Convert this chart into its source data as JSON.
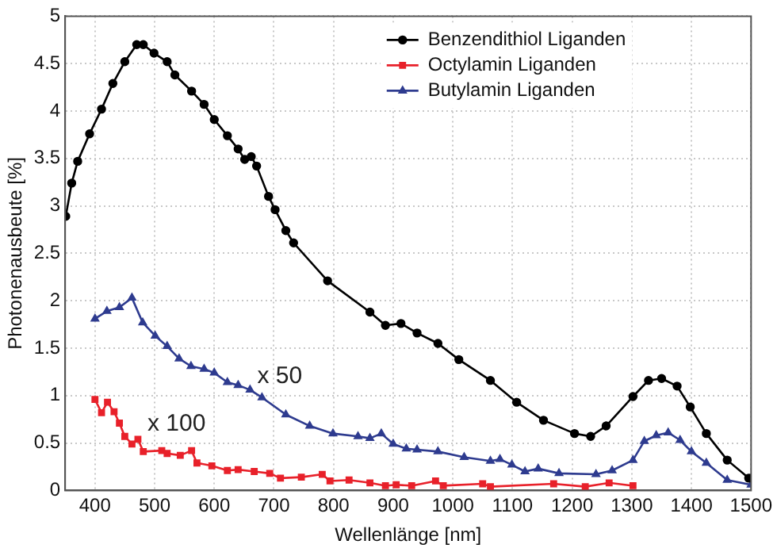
{
  "chart_data": {
    "type": "line",
    "xlabel": "Wellenlänge [nm]",
    "ylabel": "Photonenausbeute [%]",
    "xlim": [
      350,
      1500
    ],
    "xticks": [
      400,
      500,
      600,
      700,
      800,
      900,
      1000,
      1100,
      1200,
      1300,
      1400,
      1500
    ],
    "ylim": [
      0,
      5
    ],
    "yticks": [
      0,
      0.5,
      1,
      1.5,
      2,
      2.5,
      3,
      3.5,
      4,
      4.5,
      5
    ],
    "grid": true,
    "legend": "top right",
    "line_style": "solid",
    "annotations": [
      "x 50",
      "x 100"
    ],
    "series": [
      {
        "name": "Benzendithiol Liganden",
        "color": "#000000",
        "marker": "circle",
        "x": [
          351,
          361,
          371,
          391,
          411,
          430,
          450,
          470,
          481,
          499,
          521,
          534,
          562,
          583,
          600,
          622,
          640,
          651,
          662,
          671,
          691,
          702,
          720,
          733,
          790,
          861,
          887,
          913,
          940,
          975,
          1010,
          1063,
          1107,
          1152,
          1204,
          1231,
          1257,
          1302,
          1328,
          1350,
          1376,
          1398,
          1425,
          1460,
          1496
        ],
        "values": [
          2.89,
          3.24,
          3.47,
          3.76,
          4.02,
          4.29,
          4.52,
          4.7,
          4.7,
          4.61,
          4.52,
          4.38,
          4.21,
          4.07,
          3.91,
          3.74,
          3.6,
          3.49,
          3.52,
          3.42,
          3.1,
          2.96,
          2.74,
          2.61,
          2.21,
          1.88,
          1.74,
          1.76,
          1.66,
          1.55,
          1.38,
          1.16,
          0.93,
          0.74,
          0.6,
          0.57,
          0.68,
          0.99,
          1.16,
          1.18,
          1.1,
          0.88,
          0.6,
          0.32,
          0.13
        ]
      },
      {
        "name": "Octylamin Liganden",
        "color": "#e8212a",
        "marker": "square",
        "x": [
          400,
          411,
          421,
          432,
          441,
          450,
          462,
          472,
          481,
          512,
          521,
          543,
          562,
          571,
          596,
          622,
          640,
          667,
          693,
          711,
          746,
          781,
          794,
          826,
          861,
          887,
          905,
          931,
          971,
          984,
          1050,
          1063,
          1169,
          1222,
          1262,
          1302
        ],
        "values": [
          0.96,
          0.82,
          0.93,
          0.83,
          0.71,
          0.57,
          0.49,
          0.54,
          0.41,
          0.42,
          0.39,
          0.37,
          0.42,
          0.29,
          0.26,
          0.21,
          0.22,
          0.2,
          0.18,
          0.13,
          0.14,
          0.17,
          0.1,
          0.11,
          0.08,
          0.05,
          0.06,
          0.05,
          0.1,
          0.05,
          0.07,
          0.04,
          0.07,
          0.04,
          0.08,
          0.05
        ]
      },
      {
        "name": "Butylamin Liganden",
        "color": "#2e3b8f",
        "marker": "triangle",
        "x": [
          400,
          420,
          441,
          462,
          480,
          501,
          521,
          541,
          561,
          583,
          600,
          622,
          640,
          660,
          680,
          720,
          760,
          799,
          841,
          861,
          880,
          900,
          922,
          940,
          975,
          1019,
          1063,
          1079,
          1099,
          1121,
          1143,
          1178,
          1240,
          1267,
          1302,
          1321,
          1341,
          1361,
          1381,
          1400,
          1425,
          1460,
          1500
        ],
        "values": [
          1.81,
          1.89,
          1.93,
          2.03,
          1.77,
          1.63,
          1.52,
          1.39,
          1.31,
          1.28,
          1.24,
          1.14,
          1.11,
          1.06,
          0.98,
          0.8,
          0.68,
          0.6,
          0.57,
          0.55,
          0.6,
          0.49,
          0.44,
          0.43,
          0.41,
          0.35,
          0.31,
          0.33,
          0.27,
          0.2,
          0.23,
          0.18,
          0.17,
          0.21,
          0.32,
          0.52,
          0.58,
          0.61,
          0.53,
          0.41,
          0.29,
          0.11,
          0.06
        ]
      }
    ]
  }
}
